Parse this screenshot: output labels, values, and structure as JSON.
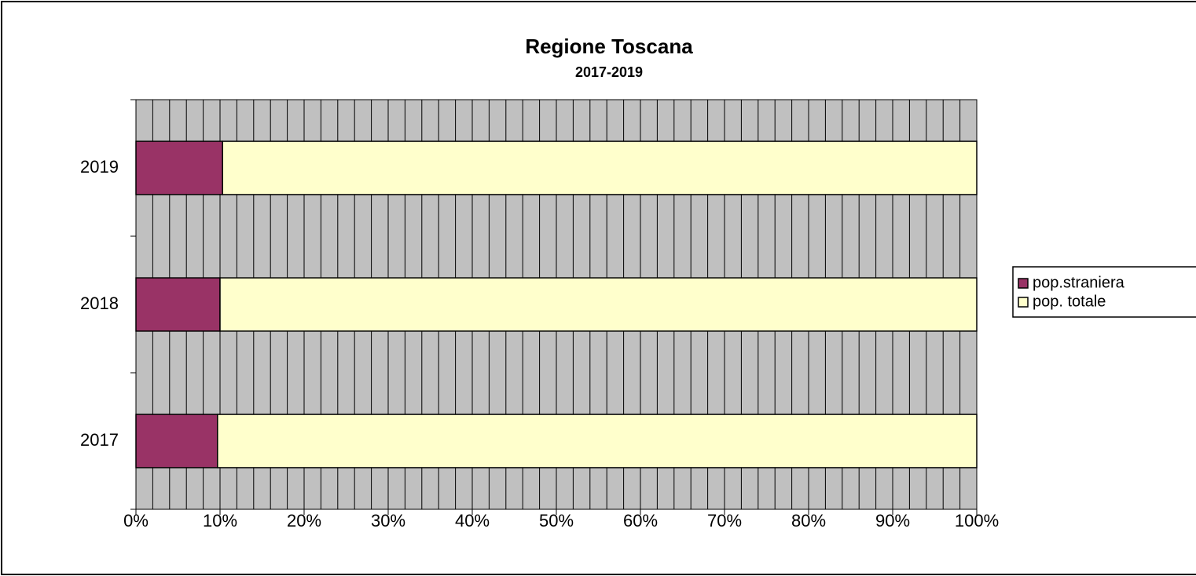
{
  "chart_data": {
    "type": "stacked-bar-horizontal",
    "title": "Regione Toscana",
    "subtitle": "2017-2019",
    "categories": [
      "2017",
      "2018",
      "2019"
    ],
    "series": [
      {
        "name": "pop.straniera",
        "color": "#993366",
        "values": [
          9.7,
          10.0,
          10.3
        ]
      },
      {
        "name": "pop. totale",
        "color": "#ffffcc",
        "values": [
          90.3,
          90.0,
          89.7
        ]
      }
    ],
    "xlim": [
      0,
      100
    ],
    "xticks": [
      {
        "value": 0,
        "label": "0%"
      },
      {
        "value": 10,
        "label": "10%"
      },
      {
        "value": 20,
        "label": "20%"
      },
      {
        "value": 30,
        "label": "30%"
      },
      {
        "value": 40,
        "label": "40%"
      },
      {
        "value": 50,
        "label": "50%"
      },
      {
        "value": 60,
        "label": "60%"
      },
      {
        "value": 70,
        "label": "70%"
      },
      {
        "value": 80,
        "label": "80%"
      },
      {
        "value": 90,
        "label": "90%"
      },
      {
        "value": 100,
        "label": "100%"
      }
    ],
    "minor_xticks": [
      0,
      2,
      4,
      6,
      8,
      10,
      12,
      14,
      16,
      18,
      20,
      22,
      24,
      26,
      28,
      30,
      32,
      34,
      36,
      38,
      40,
      42,
      44,
      46,
      48,
      50,
      52,
      54,
      56,
      58,
      60,
      62,
      64,
      66,
      68,
      70,
      72,
      74,
      76,
      78,
      80,
      82,
      84,
      86,
      88,
      90,
      92,
      94,
      96,
      98,
      100
    ],
    "grid": true,
    "plot_background": "#c0c0c0",
    "legend": "right"
  }
}
